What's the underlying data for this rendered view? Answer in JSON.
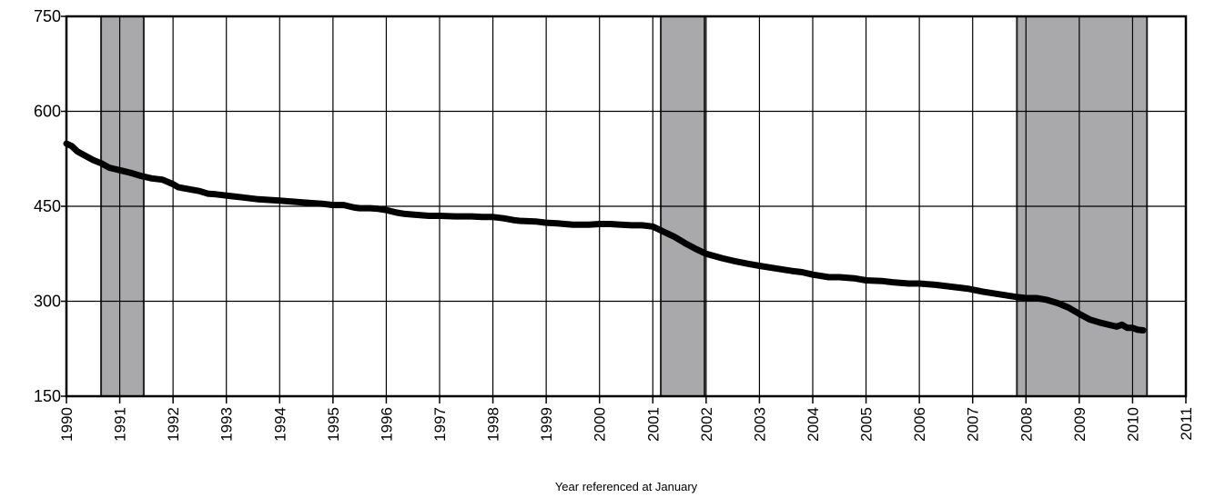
{
  "chart_data": {
    "type": "line",
    "title": "",
    "xlabel": "Year referenced at January",
    "ylabel": "",
    "xlim": [
      1990,
      2011
    ],
    "ylim": [
      150,
      750
    ],
    "yticks": [
      150,
      300,
      450,
      600,
      750
    ],
    "xticks": [
      "1990",
      "1991",
      "1992",
      "1993",
      "1994",
      "1995",
      "1996",
      "1997",
      "1998",
      "1999",
      "2000",
      "2001",
      "2002",
      "2003",
      "2004",
      "2005",
      "2006",
      "2007",
      "2008",
      "2009",
      "2010",
      "2011"
    ],
    "grid": true,
    "legend": "none",
    "colors": {
      "line": "#000000",
      "recession_fill": "#a9a9ab",
      "grid": "#000000",
      "background": "#ffffff"
    },
    "shaded_periods": [
      {
        "start": 1990.65,
        "end": 1991.45
      },
      {
        "start": 2001.15,
        "end": 2001.97
      },
      {
        "start": 2007.83,
        "end": 2010.27
      }
    ],
    "series": [
      {
        "x": [
          1990.0,
          1990.1,
          1990.2,
          1990.35,
          1990.5,
          1990.65,
          1990.8,
          1991.0,
          1991.2,
          1991.4,
          1991.6,
          1991.8,
          1992.0,
          1992.1,
          1992.3,
          1992.5,
          1992.65,
          1992.8,
          1993.0,
          1993.3,
          1993.6,
          1993.8,
          1994.0,
          1994.3,
          1994.6,
          1994.8,
          1995.0,
          1995.2,
          1995.4,
          1995.5,
          1995.7,
          1995.85,
          1996.0,
          1996.2,
          1996.35,
          1996.5,
          1996.8,
          1997.0,
          1997.3,
          1997.6,
          1997.8,
          1998.0,
          1998.2,
          1998.4,
          1998.5,
          1998.8,
          1999.0,
          1999.2,
          1999.5,
          1999.8,
          2000.0,
          2000.2,
          2000.4,
          2000.6,
          2000.8,
          2001.0,
          2001.2,
          2001.4,
          2001.6,
          2001.8,
          2002.0,
          2002.3,
          2002.5,
          2002.8,
          2003.0,
          2003.3,
          2003.6,
          2003.8,
          2004.0,
          2004.3,
          2004.5,
          2004.8,
          2005.0,
          2005.3,
          2005.5,
          2005.8,
          2006.0,
          2006.3,
          2006.6,
          2006.9,
          2007.2,
          2007.5,
          2007.8,
          2008.0,
          2008.2,
          2008.4,
          2008.6,
          2008.8,
          2009.0,
          2009.2,
          2009.4,
          2009.6,
          2009.7,
          2009.8,
          2009.9,
          2010.0,
          2010.1,
          2010.2
        ],
        "values": [
          549,
          545,
          537,
          530,
          523,
          518,
          511,
          507,
          503,
          498,
          494,
          492,
          485,
          480,
          477,
          474,
          470,
          469,
          467,
          464,
          461,
          460,
          459,
          457,
          455,
          454,
          452,
          452,
          448,
          447,
          447,
          446,
          444,
          440,
          438,
          437,
          435,
          435,
          434,
          434,
          433,
          433,
          431,
          428,
          427,
          426,
          424,
          423,
          421,
          421,
          422,
          422,
          421,
          420,
          420,
          418,
          410,
          402,
          392,
          383,
          375,
          368,
          364,
          359,
          356,
          352,
          348,
          346,
          342,
          338,
          338,
          336,
          333,
          332,
          330,
          328,
          328,
          326,
          323,
          320,
          315,
          311,
          307,
          305,
          305,
          302,
          297,
          290,
          280,
          271,
          266,
          262,
          260,
          263,
          258,
          258,
          255,
          254
        ]
      }
    ]
  }
}
